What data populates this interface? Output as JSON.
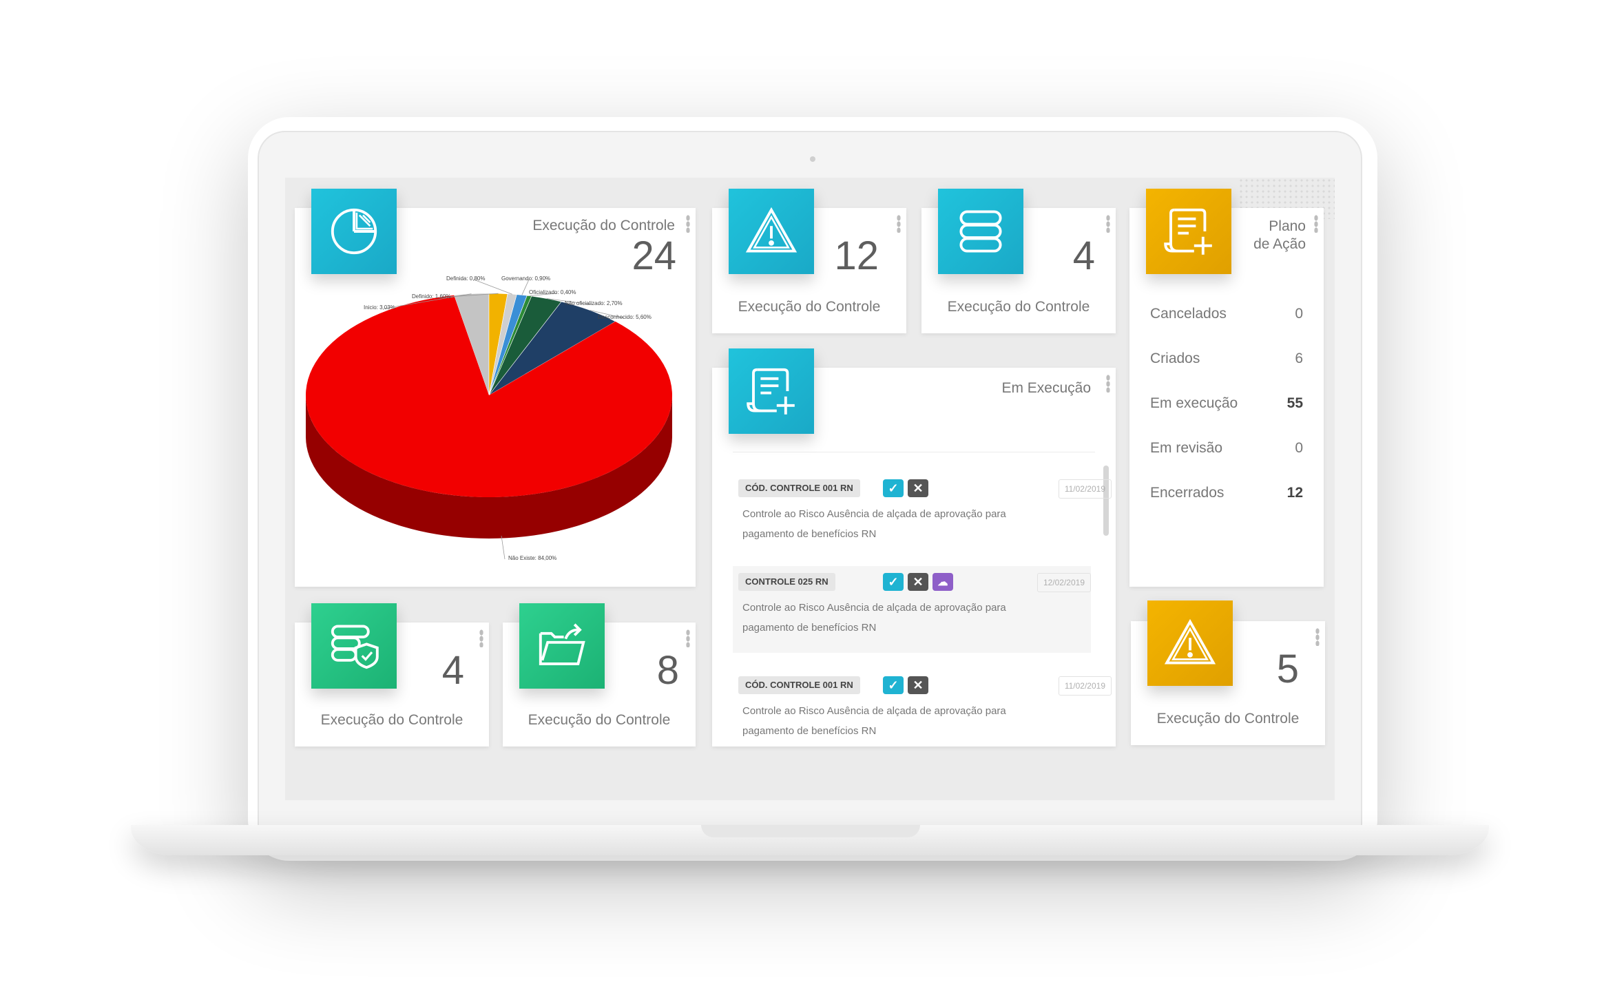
{
  "dashboard": {
    "pie_card": {
      "title": "Execução do Controle",
      "value": "24",
      "icon": "pie-chart-icon",
      "labels": [
        "Inicio: 3,03%",
        "Definido: 1,60%",
        "Definida: 0,80%",
        "Governando: 0,90%",
        "Oficializado: 0,40%",
        "Não oficializado: 2,70%",
        "Desconhecido: 5,60%",
        "Não Existe: 84,00%"
      ]
    },
    "kpi_alert": {
      "value": "12",
      "label": "Execução do Controle",
      "icon": "warning-icon"
    },
    "kpi_database": {
      "value": "4",
      "label": "Execução do Controle",
      "icon": "database-icon"
    },
    "plano": {
      "title_line1": "Plano",
      "title_line2": "de Ação",
      "icon": "document-add-icon",
      "rows": [
        {
          "label": "Cancelados",
          "value": "0"
        },
        {
          "label": "Criados",
          "value": "6"
        },
        {
          "label": "Em execução",
          "value": "55"
        },
        {
          "label": "Em revisão",
          "value": "0"
        },
        {
          "label": "Encerrados",
          "value": "12"
        }
      ]
    },
    "em_execucao": {
      "title": "Em Execução",
      "icon": "document-add-icon",
      "items": [
        {
          "code": "CÓD. CONTROLE 001 RN",
          "date": "11/02/2019",
          "desc": "Controle ao Risco Ausência de alçada de aprovação para pagamento de benefícios RN"
        },
        {
          "code": "CONTROLE 025 RN",
          "date": "12/02/2019",
          "desc": "Controle ao Risco Ausência de alçada de aprovação para pagamento de benefícios RN"
        },
        {
          "code": "CÓD. CONTROLE 001 RN",
          "date": "11/02/2019",
          "desc": "Controle ao Risco Ausência de alçada de aprovação para pagamento de benefícios RN"
        }
      ]
    },
    "kpi_shield": {
      "value": "4",
      "label": "Execução do Controle",
      "icon": "database-shield-icon"
    },
    "kpi_folder": {
      "value": "8",
      "label": "Execução do Controle",
      "icon": "folder-export-icon"
    },
    "kpi_warning_gold": {
      "value": "5",
      "label": "Execução do Controle",
      "icon": "warning-icon"
    }
  },
  "chart_data": {
    "type": "pie",
    "title": "",
    "categories": [
      "Não Existe",
      "Inicio",
      "Definido",
      "Definida",
      "Governando",
      "Oficializado",
      "Não oficializado",
      "Desconhecido"
    ],
    "values": [
      84.0,
      3.03,
      1.6,
      0.8,
      0.9,
      0.4,
      2.7,
      5.6
    ],
    "colors": [
      "#f20000",
      "#c4c4c4",
      "#f2b200",
      "#cfcfcf",
      "#3a8fd6",
      "#2c8a36",
      "#1a5c3a",
      "#1f3f66"
    ]
  }
}
